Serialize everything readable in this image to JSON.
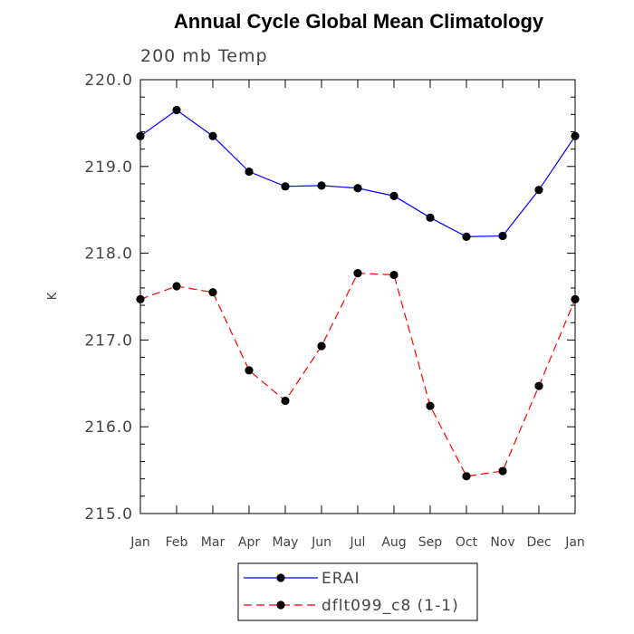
{
  "chart_data": {
    "type": "line",
    "title": "Annual Cycle Global Mean Climatology",
    "subtitle": "200 mb Temp",
    "ylabel": "K",
    "xlabel": "",
    "ylim": [
      215.0,
      220.0
    ],
    "y_ticks": [
      "215.0",
      "216.0",
      "217.0",
      "218.0",
      "219.0",
      "220.0"
    ],
    "categories": [
      "Jan",
      "Feb",
      "Mar",
      "Apr",
      "May",
      "Jun",
      "Jul",
      "Aug",
      "Sep",
      "Oct",
      "Nov",
      "Dec",
      "Jan"
    ],
    "grid": false,
    "legend_position": "bottom-center",
    "series": [
      {
        "name": "ERAI",
        "color": "#0000ff",
        "line_style": "solid",
        "marker": "filled-circle",
        "values": [
          219.35,
          219.65,
          219.35,
          218.94,
          218.77,
          218.78,
          218.75,
          218.66,
          218.41,
          218.19,
          218.2,
          218.73,
          219.35
        ]
      },
      {
        "name": "dflt099_c8 (1-1)",
        "color": "#ff0000",
        "line_style": "dashed",
        "marker": "filled-circle",
        "values": [
          217.47,
          217.62,
          217.55,
          216.65,
          216.3,
          216.93,
          217.77,
          217.75,
          216.24,
          215.43,
          215.49,
          216.47,
          217.47
        ]
      }
    ]
  }
}
